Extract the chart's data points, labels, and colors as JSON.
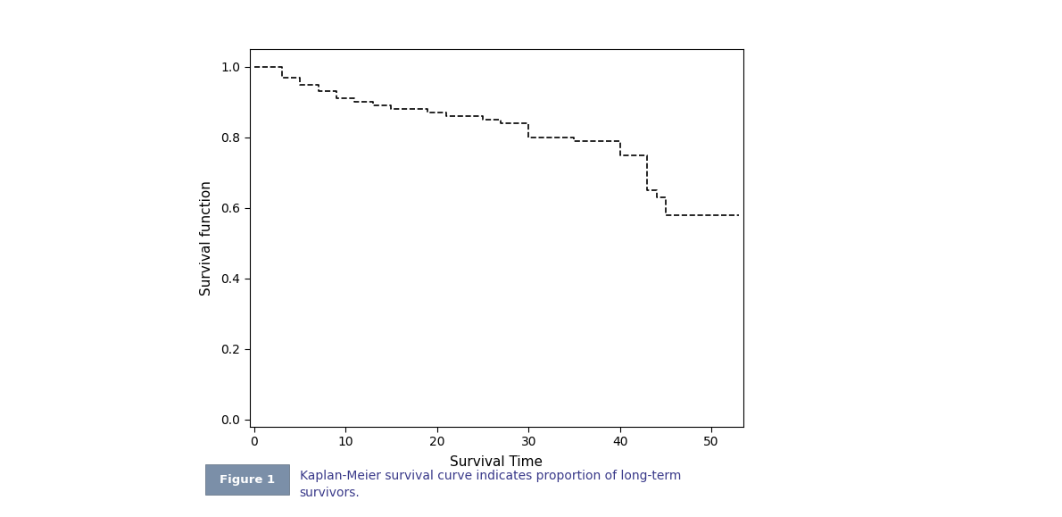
{
  "xlabel": "Survival Time",
  "ylabel": "Survival function",
  "xlim": [
    -0.5,
    53.5
  ],
  "ylim": [
    -0.02,
    1.05
  ],
  "xticks": [
    0,
    10,
    20,
    30,
    40,
    50
  ],
  "yticks": [
    0.0,
    0.2,
    0.4,
    0.6,
    0.8,
    1.0
  ],
  "step_x": [
    0,
    1,
    3,
    5,
    7,
    9,
    11,
    13,
    15,
    17,
    19,
    21,
    23,
    25,
    27,
    28,
    30,
    33,
    35,
    38,
    40,
    42,
    43,
    44,
    45,
    53
  ],
  "step_y": [
    1.0,
    1.0,
    0.97,
    0.95,
    0.93,
    0.91,
    0.9,
    0.89,
    0.88,
    0.88,
    0.87,
    0.86,
    0.86,
    0.85,
    0.84,
    0.84,
    0.8,
    0.8,
    0.79,
    0.79,
    0.75,
    0.75,
    0.65,
    0.63,
    0.58,
    0.58
  ],
  "line_color": "#000000",
  "line_style": "--",
  "line_width": 1.2,
  "figure_bg": "#ffffff",
  "border_color": "#b0bcc8",
  "caption_label": "Figure 1",
  "caption_label_bg": "#7b8fa8",
  "caption_label_color": "#ffffff",
  "caption_text_line1": "Kaplan-Meier survival curve indicates proportion of long-term",
  "caption_text_line2": "survivors.",
  "caption_text_color": "#3a3a8a",
  "axis_label_fontsize": 11,
  "tick_fontsize": 10
}
